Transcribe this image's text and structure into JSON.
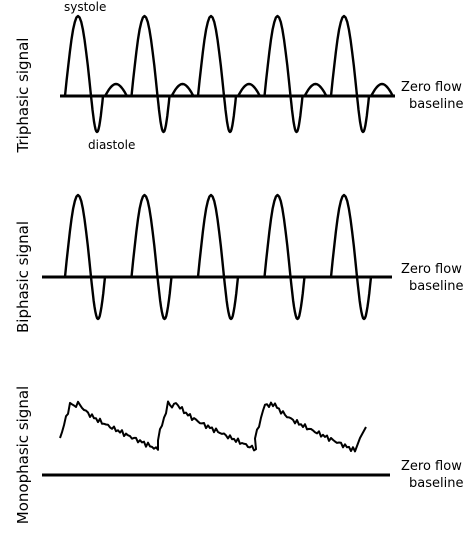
{
  "panels": [
    {
      "label": "Triphasic signal",
      "baseline_label": [
        "Zero flow",
        "baseline"
      ]
    },
    {
      "label": "Biphasic signal",
      "baseline_label": [
        "Zero flow",
        "baseline"
      ]
    },
    {
      "label": "Monophasic signal",
      "baseline_label": [
        "Zero flow",
        "baseline"
      ]
    }
  ],
  "annotations": {
    "systole": "systole",
    "diastole": "diastole"
  }
}
